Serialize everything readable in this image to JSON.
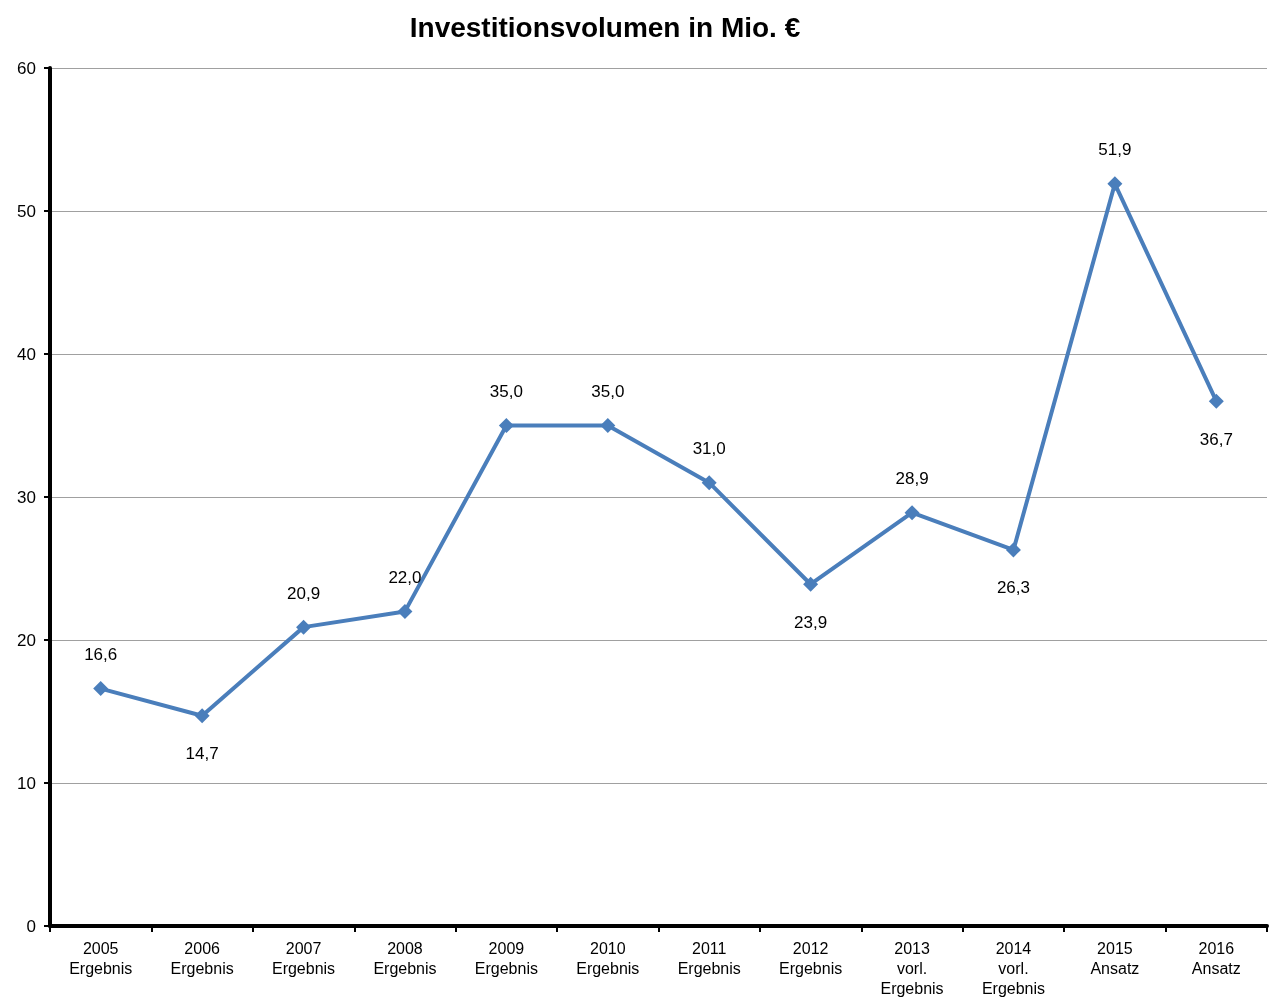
{
  "chart_data": {
    "type": "line",
    "title": "Investitionsvolumen in Mio. €",
    "categories": [
      "2005\nErgebnis",
      "2006\nErgebnis",
      "2007\nErgebnis",
      "2008\nErgebnis",
      "2009\nErgebnis",
      "2010\nErgebnis",
      "2011\nErgebnis",
      "2012\nErgebnis",
      "2013\nvorl.\nErgebnis",
      "2014\nvorl.\nErgebnis",
      "2015\nAnsatz",
      "2016\nAnsatz"
    ],
    "series": [
      {
        "color": "#4a7ebb",
        "values": [
          16.6,
          14.7,
          20.9,
          22.0,
          35.0,
          35.0,
          31.0,
          23.9,
          28.9,
          26.3,
          51.9,
          36.7
        ],
        "value_labels": [
          "16,6",
          "14,7",
          "20,9",
          "22,0",
          "35,0",
          "35,0",
          "31,0",
          "23,9",
          "28,9",
          "26,3",
          "51,9",
          "36,7"
        ]
      }
    ],
    "ylim": [
      0,
      60
    ],
    "yticks": [
      0,
      10,
      20,
      30,
      40,
      50,
      60
    ],
    "grid": "y",
    "marker": "diamond",
    "line_style": "solid"
  }
}
